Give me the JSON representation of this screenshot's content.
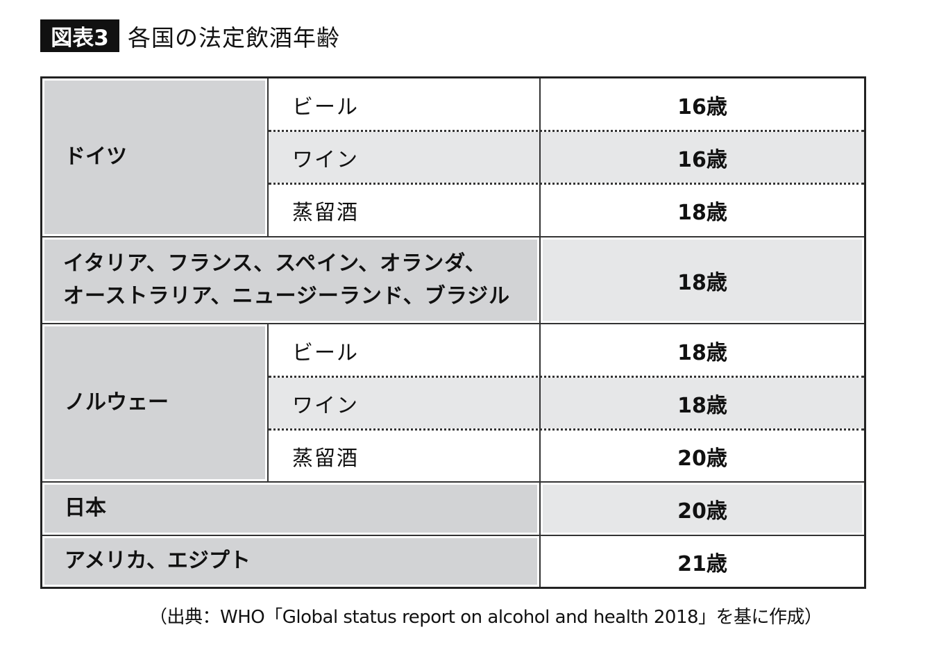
{
  "figure_label": "図表3",
  "title": "各国の法定飲酒年齢",
  "rows": {
    "germany": {
      "country": "ドイツ",
      "items": [
        {
          "type": "ビール",
          "age": "16歳"
        },
        {
          "type": "ワイン",
          "age": "16歳"
        },
        {
          "type": "蒸留酒",
          "age": "18歳"
        }
      ]
    },
    "group": {
      "countries_line1": "イタリア、フランス、スペイン、オランダ、",
      "countries_line2": "オーストラリア、ニュージーランド、ブラジル",
      "age": "18歳"
    },
    "norway": {
      "country": "ノルウェー",
      "items": [
        {
          "type": "ビール",
          "age": "18歳"
        },
        {
          "type": "ワイン",
          "age": "18歳"
        },
        {
          "type": "蒸留酒",
          "age": "20歳"
        }
      ]
    },
    "japan": {
      "country": "日本",
      "age": "20歳"
    },
    "usa_egypt": {
      "country": "アメリカ、エジプト",
      "age": "21歳"
    }
  },
  "source": "（出典：WHO「Global status report on alcohol and health 2018」を基に作成）",
  "colors": {
    "country_cell": "#d2d3d5",
    "highlight_row": "#e6e7e8",
    "badge": "#111111"
  }
}
